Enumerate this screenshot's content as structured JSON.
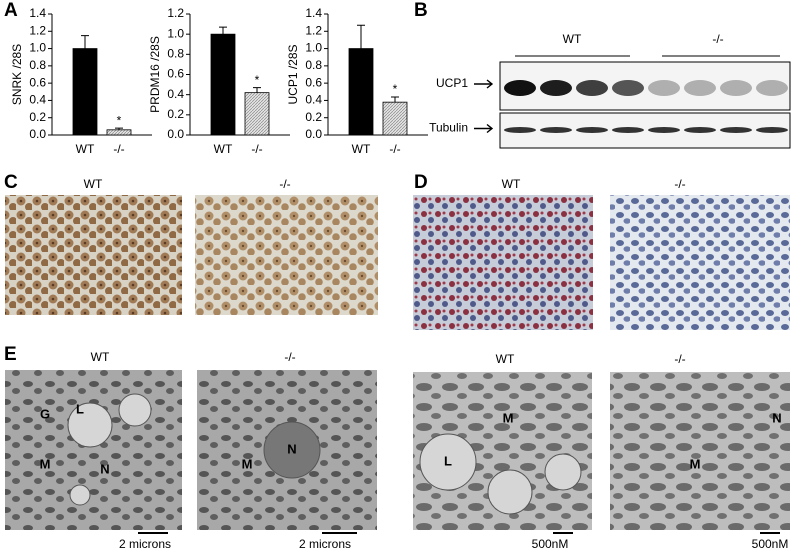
{
  "chart_data": [
    {
      "type": "bar",
      "y_label": "SNRK /28S",
      "categories": [
        "WT",
        "-/-"
      ],
      "values": [
        1.0,
        0.06
      ],
      "errors": [
        0.15,
        0.02
      ],
      "colors": [
        "#000000",
        "#c8c8c8"
      ],
      "annotation": "*",
      "ylim": [
        0,
        1.4
      ],
      "yticks": [
        {
          "value": 0,
          "label": "0.0"
        },
        0.2,
        0.4,
        0.6,
        0.8,
        {
          "value": 1,
          "label": "1.0"
        },
        1.2,
        1.4
      ]
    },
    {
      "type": "bar",
      "y_label": "PRDM16 /28S",
      "categories": [
        "WT",
        "-/-"
      ],
      "values": [
        1.0,
        0.42
      ],
      "errors": [
        0.07,
        0.05
      ],
      "colors": [
        "#000000",
        "#c8c8c8"
      ],
      "annotation": "*",
      "ylim": [
        0,
        1.2
      ],
      "yticks": [
        {
          "value": 0,
          "label": "0.0"
        },
        0.2,
        0.4,
        0.6,
        0.8,
        {
          "value": 1,
          "label": "1.0"
        },
        1.2
      ]
    },
    {
      "type": "bar",
      "y_label": "UCP1 /28S",
      "categories": [
        "WT",
        "-/-"
      ],
      "values": [
        1.0,
        0.38
      ],
      "errors": [
        0.27,
        0.06
      ],
      "colors": [
        "#000000",
        "#c8c8c8"
      ],
      "annotation": "*",
      "ylim": [
        0,
        1.4
      ],
      "yticks": [
        {
          "value": 0,
          "label": "0.0"
        },
        0.2,
        0.4,
        0.6,
        0.8,
        {
          "value": 1,
          "label": "1.0"
        },
        1.2,
        1.4
      ]
    }
  ],
  "figure": {
    "panel_labels": [
      "A",
      "B",
      "C",
      "D",
      "E"
    ],
    "blot": {
      "groups": [
        "WT",
        "-/-"
      ],
      "rows": [
        "UCP1",
        "Tubulin"
      ]
    },
    "images": [
      {
        "title": "WT",
        "markers": []
      },
      {
        "title": "-/-",
        "markers": []
      },
      {
        "title": "WT",
        "markers": []
      },
      {
        "title": "-/-",
        "markers": []
      },
      {
        "title": "WT",
        "markers": [
          "G",
          "L",
          "M",
          "N"
        ],
        "scale": "2 microns"
      },
      {
        "title": "-/-",
        "markers": [
          "M",
          "N"
        ],
        "scale": "2 microns"
      },
      {
        "title": "WT",
        "markers": [
          "L",
          "M"
        ],
        "scale": "500nM"
      },
      {
        "title": "-/-",
        "markers": [
          "M",
          "N"
        ],
        "scale": "500nM"
      }
    ]
  }
}
